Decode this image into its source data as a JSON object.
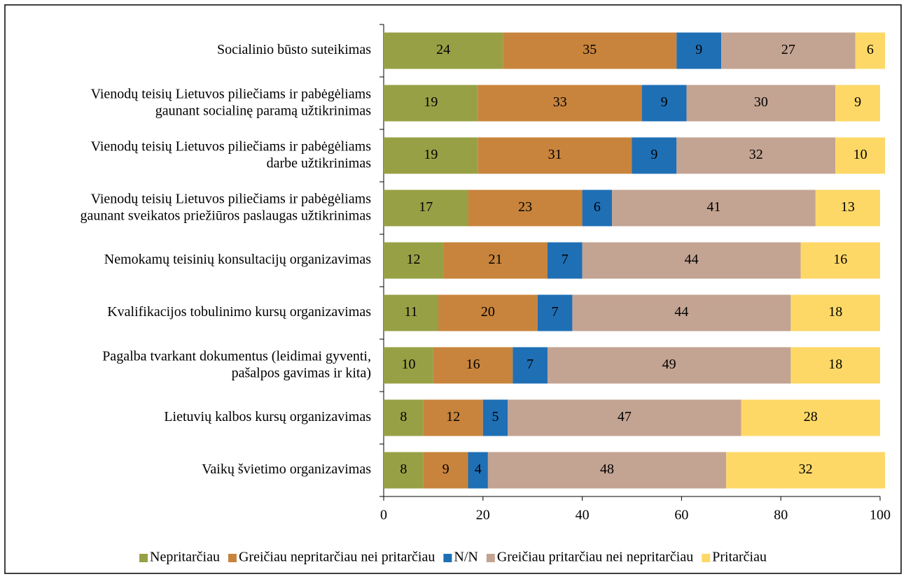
{
  "chart_data": {
    "type": "stacked_bar_horizontal",
    "categories": [
      "Socialinio būsto suteikimas",
      "Vienodų teisių Lietuvos piliečiams ir pabėgėliams\ngaunant socialinę paramą užtikrinimas",
      "Vienodų teisių Lietuvos piliečiams ir pabėgėliams\ndarbe užtikrinimas",
      "Vienodų teisių Lietuvos piliečiams ir pabėgėliams\ngaunant sveikatos priežiūros paslaugas užtikrinimas",
      "Nemokamų teisinių konsultacijų organizavimas",
      "Kvalifikacijos tobulinimo kursų organizavimas",
      "Pagalba tvarkant dokumentus (leidimai gyventi,\npašalpos gavimas ir kita)",
      "Lietuvių kalbos kursų organizavimas",
      "Vaikų švietimo organizavimas"
    ],
    "series": [
      {
        "name": "Nepritarčiau",
        "color": "#98a046",
        "values": [
          24,
          19,
          19,
          17,
          12,
          11,
          10,
          8,
          8
        ]
      },
      {
        "name": "Greičiau nepritarčiau nei pritarčiau",
        "color": "#c8843c",
        "values": [
          35,
          33,
          31,
          23,
          21,
          20,
          16,
          12,
          9
        ]
      },
      {
        "name": "N/N",
        "color": "#1f6fb5",
        "values": [
          9,
          9,
          9,
          6,
          7,
          7,
          7,
          5,
          4
        ]
      },
      {
        "name": "Greičiau pritarčiau nei nepritarčiau",
        "color": "#c3a392",
        "values": [
          27,
          30,
          32,
          41,
          44,
          44,
          49,
          47,
          48
        ]
      },
      {
        "name": "Pritarčiau",
        "color": "#fdd866",
        "values": [
          6,
          9,
          10,
          13,
          16,
          18,
          18,
          28,
          32
        ]
      }
    ],
    "xlim": [
      0,
      100
    ],
    "xticks": [
      0,
      20,
      40,
      60,
      80,
      100
    ],
    "grid": false,
    "legend": "bottom"
  }
}
